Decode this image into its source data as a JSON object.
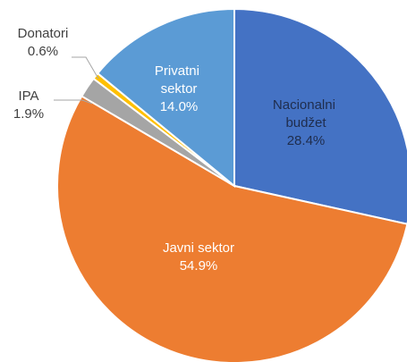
{
  "chart_data": {
    "type": "pie",
    "categories": [
      "Nacionalni budžet",
      "Javni sektor",
      "IPA",
      "Donatori",
      "Privatni sektor"
    ],
    "values": [
      28.4,
      54.9,
      1.9,
      0.6,
      14.0
    ],
    "value_labels": [
      "28.4%",
      "54.9%",
      "1.9%",
      "0.6%",
      "14.0%"
    ],
    "colors": [
      "#4472c4",
      "#ed7d31",
      "#a5a5a5",
      "#ffc000",
      "#5b9bd5"
    ]
  }
}
